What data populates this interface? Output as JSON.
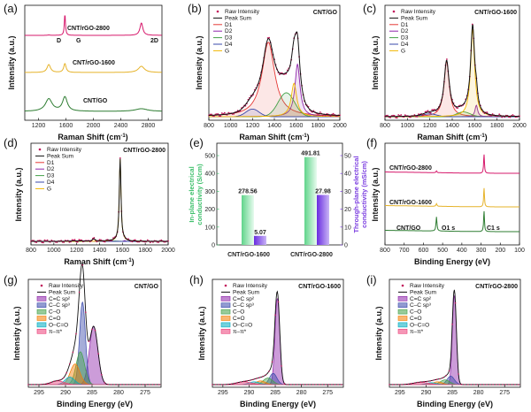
{
  "figure": {
    "raman_x_label": "Raman Shift (cm",
    "raman_x_sup": "-1",
    "raman_x_close": ")",
    "xps_x_label": "Binding Energy (eV)",
    "intensity_label": "Intensity (a.u.)"
  },
  "panels": {
    "a": {
      "label": "(a)",
      "series": [
        "CNT/rGO-2800",
        "CNT/rGO-1600",
        "CNT/GO"
      ],
      "colors": [
        "#d6186b",
        "#e6b32a",
        "#2e7d32"
      ],
      "bands": [
        "D",
        "G",
        "2D"
      ],
      "xticks": [
        "1200",
        "1600",
        "2000",
        "2400",
        "2800"
      ]
    },
    "b": {
      "label": "(b)",
      "title": "CNT/GO",
      "legend": [
        "Raw Intensity",
        "Peak Sum",
        "D1",
        "D2",
        "D3",
        "D4",
        "G"
      ],
      "xticks": [
        "800",
        "1000",
        "1200",
        "1400",
        "1600",
        "1800",
        "2000"
      ]
    },
    "c": {
      "label": "(c)",
      "title": "CNT/rGO-1600",
      "legend": [
        "Raw Intensity",
        "Peak Sum",
        "D1",
        "D2",
        "D3",
        "D4",
        "G"
      ],
      "xticks": [
        "800",
        "1000",
        "1200",
        "1400",
        "1600",
        "1800",
        "2000"
      ]
    },
    "d": {
      "label": "(d)",
      "title": "CNT/rGO-2800",
      "legend": [
        "Raw Intensity",
        "Peak Sum",
        "D1",
        "D2",
        "D3",
        "D4",
        "G"
      ],
      "xticks": [
        "800",
        "1000",
        "1200",
        "1400",
        "1600",
        "1800",
        "2000"
      ]
    },
    "e": {
      "label": "(e)",
      "categories": [
        "CNT/rGO-1600",
        "CNT/rGO-2800"
      ],
      "left_values": [
        "278.56",
        "491.81"
      ],
      "right_values": [
        "5.07",
        "27.98"
      ],
      "left_label_1": "In-plane electrical",
      "left_label_2": "conductivity (S/cm)",
      "right_label_1": "Through-plane electrical",
      "right_label_2": "conductivity (mS/cm)",
      "left_ticks": [
        "0",
        "100",
        "200",
        "300",
        "400",
        "500"
      ],
      "right_ticks": [
        "0",
        "10",
        "20",
        "30",
        "40",
        "50"
      ]
    },
    "f": {
      "label": "(f)",
      "series": [
        "CNT/rGO-2800",
        "CNT/rGO-1600",
        "CNT/GO"
      ],
      "peaks": [
        "O1 s",
        "C1 s"
      ],
      "xticks": [
        "800",
        "700",
        "600",
        "500",
        "400",
        "300",
        "200",
        "100"
      ]
    },
    "g": {
      "label": "(g)",
      "title": "CNT/GO",
      "legend": [
        "Raw Intensity",
        "Peak Sum",
        "C=C sp²",
        "C–C sp³",
        "C–O",
        "C=O",
        "O–C=O",
        "π–π*"
      ],
      "xticks": [
        "295",
        "290",
        "285",
        "280",
        "275"
      ]
    },
    "h": {
      "label": "(h)",
      "title": "CNT/rGO-1600",
      "legend": [
        "Raw Intensity",
        "Peak Sum",
        "C=C sp²",
        "C–C sp³",
        "C–O",
        "C=O",
        "O–C=O",
        "π–π*"
      ],
      "xticks": [
        "295",
        "290",
        "285",
        "280",
        "275"
      ]
    },
    "i": {
      "label": "(i)",
      "title": "CNT/rGO-2800",
      "legend": [
        "Raw Intensity",
        "Peak Sum",
        "C=C sp²",
        "C–C sp³",
        "C–O",
        "C=O",
        "O–C=O",
        "π–π*"
      ],
      "xticks": [
        "295",
        "290",
        "285",
        "280",
        "275"
      ]
    }
  },
  "chart_data": [
    {
      "panel": "e",
      "type": "bar",
      "categories": [
        "CNT/rGO-1600",
        "CNT/rGO-2800"
      ],
      "series": [
        {
          "name": "In-plane electrical conductivity (S/cm)",
          "values": [
            278.56,
            491.81
          ]
        },
        {
          "name": "Through-plane electrical conductivity (mS/cm)",
          "values": [
            5.07,
            27.98
          ]
        }
      ],
      "ylim": [
        0,
        500
      ],
      "y2lim": [
        0,
        50
      ]
    }
  ]
}
